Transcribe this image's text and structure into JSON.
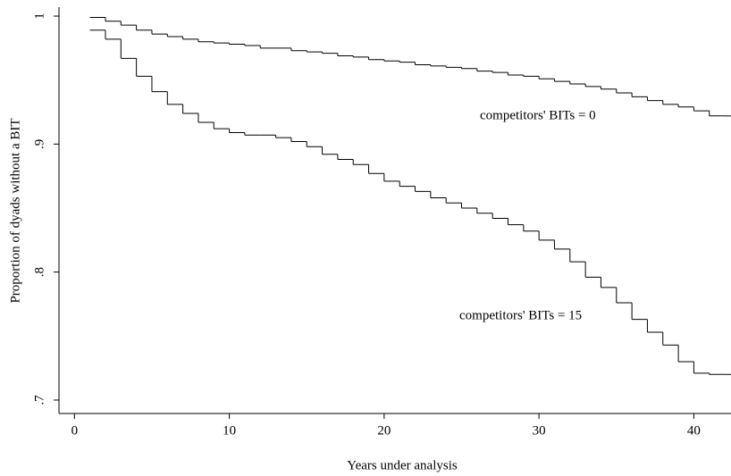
{
  "chart_data": {
    "type": "line",
    "drawstyle": "steps-post",
    "x_label": "Years under analysis",
    "y_label": "Proportion of dyads without a BIT",
    "xlim": [
      -1,
      42.4
    ],
    "ylim": [
      0.6895,
      1.007
    ],
    "xticks": [
      0,
      10,
      20,
      30,
      40
    ],
    "yticks": [
      {
        "value": 0.7,
        "label": ".7"
      },
      {
        "value": 0.8,
        "label": ".8"
      },
      {
        "value": 0.9,
        "label": ".9"
      },
      1
    ],
    "x": [
      1,
      2,
      3,
      4,
      5,
      6,
      7,
      8,
      9,
      10,
      11,
      12,
      13,
      14,
      15,
      16,
      17,
      18,
      19,
      20,
      21,
      22,
      23,
      24,
      25,
      26,
      27,
      28,
      29,
      30,
      31,
      32,
      33,
      34,
      35,
      36,
      37,
      38,
      39,
      40,
      41,
      42
    ],
    "series": [
      {
        "name": "competitors' BITs = 0",
        "color": "#000000",
        "values": [
          0.999,
          0.996,
          0.993,
          0.989,
          0.986,
          0.984,
          0.982,
          0.98,
          0.979,
          0.978,
          0.977,
          0.975,
          0.975,
          0.973,
          0.972,
          0.971,
          0.969,
          0.968,
          0.966,
          0.965,
          0.964,
          0.962,
          0.961,
          0.96,
          0.959,
          0.957,
          0.956,
          0.954,
          0.953,
          0.951,
          0.949,
          0.947,
          0.945,
          0.943,
          0.94,
          0.937,
          0.934,
          0.931,
          0.929,
          0.926,
          0.922,
          0.922
        ]
      },
      {
        "name": "competitors' BITs = 15",
        "color": "#000000",
        "values": [
          0.989,
          0.982,
          0.967,
          0.953,
          0.941,
          0.931,
          0.924,
          0.917,
          0.912,
          0.909,
          0.907,
          0.907,
          0.905,
          0.902,
          0.898,
          0.892,
          0.888,
          0.884,
          0.877,
          0.871,
          0.867,
          0.863,
          0.858,
          0.854,
          0.85,
          0.846,
          0.842,
          0.837,
          0.832,
          0.825,
          0.818,
          0.808,
          0.796,
          0.788,
          0.776,
          0.763,
          0.753,
          0.743,
          0.73,
          0.721,
          0.72,
          0.72
        ]
      }
    ]
  }
}
